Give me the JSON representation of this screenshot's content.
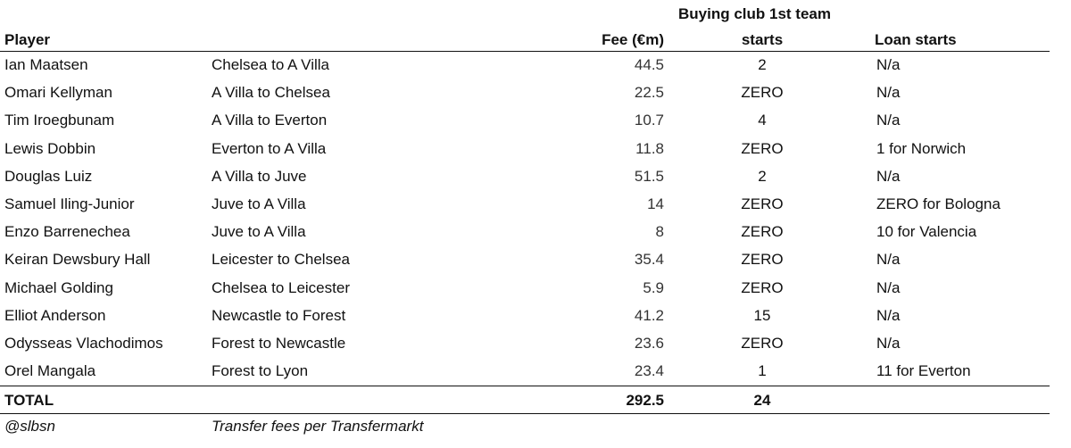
{
  "headers": {
    "player": "Player",
    "fee": "Fee (€m)",
    "buying_line1": "Buying club 1st team",
    "buying_line2": "starts",
    "loan": "Loan starts"
  },
  "rows": [
    {
      "player": "Ian Maatsen",
      "move": "Chelsea to A Villa",
      "fee": "44.5",
      "starts": "2",
      "loan": "N/a"
    },
    {
      "player": "Omari Kellyman",
      "move": "A Villa to Chelsea",
      "fee": "22.5",
      "starts": "ZERO",
      "loan": "N/a"
    },
    {
      "player": "Tim Iroegbunam",
      "move": "A Villa to Everton",
      "fee": "10.7",
      "starts": "4",
      "loan": "N/a"
    },
    {
      "player": "Lewis Dobbin",
      "move": "Everton to A Villa",
      "fee": "11.8",
      "starts": "ZERO",
      "loan": "1 for Norwich"
    },
    {
      "player": "Douglas Luiz",
      "move": "A Villa to Juve",
      "fee": "51.5",
      "starts": "2",
      "loan": "N/a"
    },
    {
      "player": "Samuel Iling-Junior",
      "move": "Juve to A Villa",
      "fee": "14",
      "starts": "ZERO",
      "loan": "ZERO for Bologna"
    },
    {
      "player": "Enzo Barrenechea",
      "move": "Juve to A Villa",
      "fee": "8",
      "starts": "ZERO",
      "loan": "10 for Valencia"
    },
    {
      "player": "Keiran Dewsbury Hall",
      "move": "Leicester to Chelsea",
      "fee": "35.4",
      "starts": "ZERO",
      "loan": "N/a"
    },
    {
      "player": "Michael Golding",
      "move": "Chelsea to Leicester",
      "fee": "5.9",
      "starts": "ZERO",
      "loan": "N/a"
    },
    {
      "player": "Elliot Anderson",
      "move": "Newcastle to Forest",
      "fee": "41.2",
      "starts": "15",
      "loan": "N/a"
    },
    {
      "player": "Odysseas Vlachodimos",
      "move": "Forest to Newcastle",
      "fee": "23.6",
      "starts": "ZERO",
      "loan": "N/a"
    },
    {
      "player": "Orel Mangala",
      "move": "Forest to Lyon",
      "fee": "23.4",
      "starts": "1",
      "loan": "11 for Everton"
    }
  ],
  "total": {
    "label": "TOTAL",
    "fee": "292.5",
    "starts": "24"
  },
  "footer": {
    "handle": "@slbsn",
    "source": "Transfer fees per Transfermarkt"
  }
}
